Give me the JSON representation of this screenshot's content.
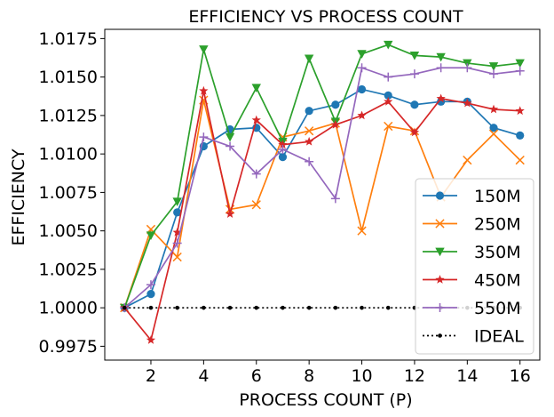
{
  "chart_data": {
    "type": "line",
    "title": "EFFICIENCY VS PROCESS COUNT",
    "xlabel": "PROCESS COUNT (P)",
    "ylabel": "EFFICIENCY",
    "xlim": [
      0.25,
      16.75
    ],
    "ylim": [
      0.9966,
      1.0181
    ],
    "xticks": [
      2,
      4,
      6,
      8,
      10,
      12,
      14,
      16
    ],
    "xtick_labels": [
      "2",
      "4",
      "6",
      "8",
      "10",
      "12",
      "14",
      "16"
    ],
    "yticks": [
      0.9975,
      1.0,
      1.0025,
      1.005,
      1.0075,
      1.01,
      1.0125,
      1.015,
      1.0175
    ],
    "ytick_labels": [
      "0.9975",
      "1.0000",
      "1.0025",
      "1.0050",
      "1.0075",
      "1.0100",
      "1.0125",
      "1.0150",
      "1.0175"
    ],
    "grid": false,
    "legend_position": "bottom-right",
    "x": [
      1,
      2,
      3,
      4,
      5,
      6,
      7,
      8,
      9,
      10,
      11,
      12,
      13,
      14,
      15,
      16
    ],
    "series": [
      {
        "name": "150M",
        "color": "#1f77b4",
        "marker": "circle",
        "values": [
          1.0,
          1.0009,
          1.0062,
          1.0105,
          1.0116,
          1.0117,
          1.0098,
          1.0128,
          1.0132,
          1.0142,
          1.0138,
          1.0132,
          1.0134,
          1.0134,
          1.0117,
          1.0112
        ]
      },
      {
        "name": "250M",
        "color": "#ff7f0e",
        "marker": "x",
        "values": [
          1.0,
          1.0051,
          1.0033,
          1.0135,
          1.0064,
          1.0067,
          1.0111,
          1.0115,
          1.012,
          1.005,
          1.0118,
          1.0115,
          1.0072,
          1.0096,
          1.0113,
          1.0096
        ]
      },
      {
        "name": "350M",
        "color": "#2ca02c",
        "marker": "triangle-down",
        "values": [
          1.0,
          1.0047,
          1.0069,
          1.0168,
          1.0111,
          1.0143,
          1.0108,
          1.0162,
          1.0121,
          1.0165,
          1.0171,
          1.0164,
          1.0163,
          1.0159,
          1.0157,
          1.0159
        ]
      },
      {
        "name": "450M",
        "color": "#d62728",
        "marker": "star",
        "values": [
          1.0,
          0.9979,
          1.0049,
          1.0141,
          1.0061,
          1.0122,
          1.0106,
          1.0108,
          1.0119,
          1.0125,
          1.0134,
          1.0114,
          1.0136,
          1.0133,
          1.0129,
          1.0128
        ]
      },
      {
        "name": "550M",
        "color": "#9467bd",
        "marker": "plus",
        "values": [
          1.0,
          1.0015,
          1.0042,
          1.0111,
          1.0105,
          1.0087,
          1.0103,
          1.0095,
          1.0071,
          1.0156,
          1.015,
          1.0152,
          1.0156,
          1.0156,
          1.0152,
          1.0154
        ]
      },
      {
        "name": "IDEAL",
        "color": "#000000",
        "marker": "dot",
        "linestyle": "dotted",
        "values": [
          1.0,
          1.0,
          1.0,
          1.0,
          1.0,
          1.0,
          1.0,
          1.0,
          1.0,
          1.0,
          1.0,
          1.0,
          1.0,
          1.0,
          1.0,
          1.0
        ]
      }
    ]
  }
}
